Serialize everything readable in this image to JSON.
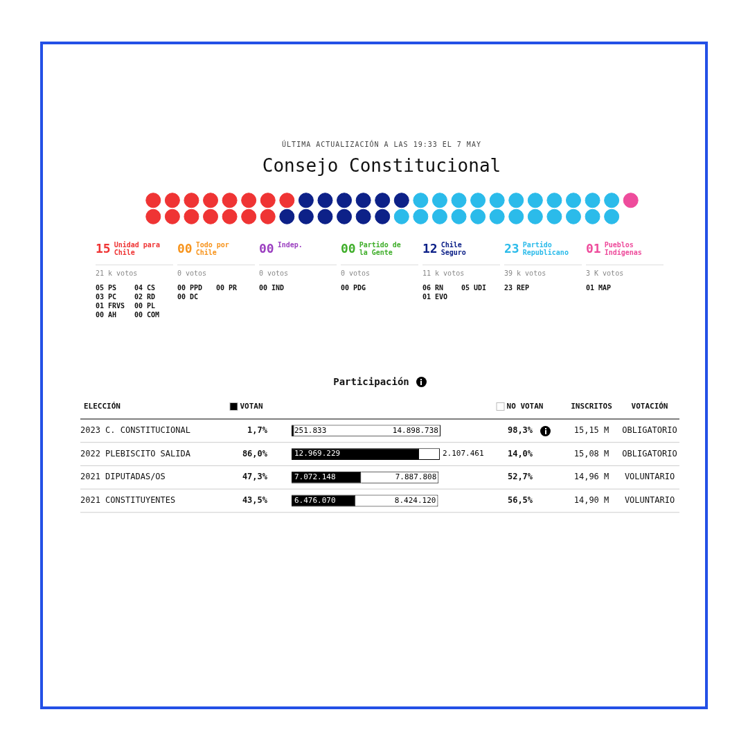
{
  "chart_data": [
    {
      "type": "other",
      "subtitle": "ÚLTIMA ACTUALIZACIÓN A LAS 19:33 EL 7 MAY",
      "title": "Consejo Constitucional",
      "categories": [
        "Unidad para Chile",
        "Todo por Chile",
        "Indep.",
        "Partido de la Gente",
        "Chile Seguro",
        "Partido Republicano",
        "Pueblos Indígenas"
      ],
      "values": [
        15,
        0,
        0,
        0,
        12,
        23,
        1
      ],
      "value_labels": [
        "15",
        "00",
        "00",
        "00",
        "12",
        "23",
        "01"
      ],
      "colors": [
        "#ef3434",
        "#f7941d",
        "#9b3fc0",
        "#3fae2a",
        "#0d2188",
        "#2bbbea",
        "#ee4c9c"
      ],
      "annotations": [
        {
          "text": "21 k votos",
          "x": "Unidad para Chile"
        },
        {
          "text": "05 PS",
          "x": "Unidad para Chile"
        },
        {
          "text": "04 CS",
          "x": "Unidad para Chile"
        },
        {
          "text": "03 PC",
          "x": "Unidad para Chile"
        },
        {
          "text": "02 RD",
          "x": "Unidad para Chile"
        },
        {
          "text": "01 FRVS",
          "x": "Unidad para Chile"
        },
        {
          "text": "00 PL",
          "x": "Unidad para Chile"
        },
        {
          "text": "00 AH",
          "x": "Unidad para Chile"
        },
        {
          "text": "00 COM",
          "x": "Unidad para Chile"
        },
        {
          "text": "0 votos",
          "x": "Todo por Chile"
        },
        {
          "text": "00 PPD",
          "x": "Todo por Chile"
        },
        {
          "text": "00 PR",
          "x": "Todo por Chile"
        },
        {
          "text": "00 DC",
          "x": "Todo por Chile"
        },
        {
          "text": "0 votos",
          "x": "Indep."
        },
        {
          "text": "00 IND",
          "x": "Indep."
        },
        {
          "text": "0 votos",
          "x": "Partido de la Gente"
        },
        {
          "text": "00 PDG",
          "x": "Partido de la Gente"
        },
        {
          "text": "11 k votos",
          "x": "Chile Seguro"
        },
        {
          "text": "06 RN",
          "x": "Chile Seguro"
        },
        {
          "text": "05 UDI",
          "x": "Chile Seguro"
        },
        {
          "text": "01 EVO",
          "x": "Chile Seguro"
        },
        {
          "text": "39 k votos",
          "x": "Partido Republicano"
        },
        {
          "text": "23 REP",
          "x": "Partido Republicano"
        },
        {
          "text": "3 K votos",
          "x": "Pueblos Indígenas"
        },
        {
          "text": "01 MAP",
          "x": "Pueblos Indígenas"
        }
      ]
    },
    {
      "type": "bar",
      "orientation": "horizontal",
      "stacked": true,
      "legend": "top",
      "title": "Participación",
      "tick_labels": "y",
      "categories": [
        "2023 C. CONSTITUCIONAL",
        "2022 PLEBISCITO SALIDA",
        "2021 DIPUTADAS/OS",
        "2021 CONSTITUYENTES"
      ],
      "xlim": [
        0,
        15150571
      ],
      "series": [
        {
          "name": "VOTAN",
          "color": "#000000",
          "values": [
            251833,
            12969229,
            7072148,
            6476070
          ],
          "value_labels": [
            "251.833",
            "12.969.229",
            "7.072.148",
            "6.476.070"
          ]
        },
        {
          "name": "NO VOTAN",
          "color": "#ffffff",
          "values": [
            14898738,
            2107461,
            7887808,
            8424120
          ],
          "value_labels": [
            "14.898.738",
            "2.107.461",
            "7.887.808",
            "8.424.120"
          ]
        }
      ],
      "annotations": [
        "ELECCIÓN",
        "INSCRITOS",
        "VOTACIÓN",
        "1,7%",
        "98,3%",
        "15,15 M",
        "OBLIGATORIO",
        "86,0%",
        "14,0%",
        "15,08 M",
        "OBLIGATORIO",
        "47,3%",
        "52,7%",
        "14,96 M",
        "VOLUNTARIO",
        "43,5%",
        "56,5%",
        "14,90 M",
        "VOLUNTARIO"
      ]
    }
  ]
}
